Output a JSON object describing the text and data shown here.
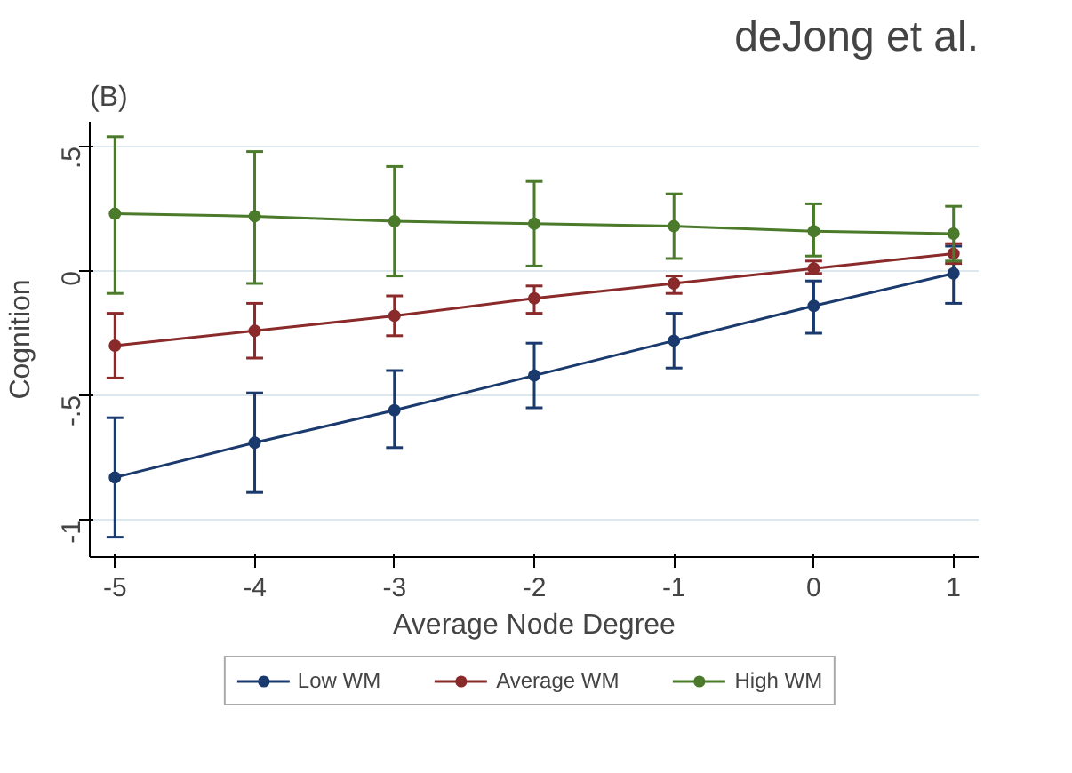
{
  "chart_data": {
    "type": "line",
    "xlabel": "Average Node Degree",
    "ylabel": "Cognition",
    "annotations": [
      "(B)",
      "deJong et al."
    ],
    "x": [
      -5,
      -4,
      -3,
      -2,
      -1,
      0,
      1
    ],
    "series": [
      {
        "name": "Low WM",
        "color": "#1a3a6e",
        "values": [
          -0.83,
          -0.69,
          -0.56,
          -0.42,
          -0.28,
          -0.14,
          -0.01
        ],
        "errors": [
          [
            -1.07,
            -0.59
          ],
          [
            -0.89,
            -0.49
          ],
          [
            -0.71,
            -0.4
          ],
          [
            -0.55,
            -0.29
          ],
          [
            -0.39,
            -0.17
          ],
          [
            -0.25,
            -0.04
          ],
          [
            -0.13,
            0.1
          ]
        ]
      },
      {
        "name": "Average WM",
        "color": "#8b2a2a",
        "values": [
          -0.3,
          -0.24,
          -0.18,
          -0.11,
          -0.05,
          0.01,
          0.07
        ],
        "errors": [
          [
            -0.43,
            -0.17
          ],
          [
            -0.35,
            -0.13
          ],
          [
            -0.26,
            -0.1
          ],
          [
            -0.17,
            -0.06
          ],
          [
            -0.09,
            -0.02
          ],
          [
            -0.01,
            0.04
          ],
          [
            0.03,
            0.11
          ]
        ]
      },
      {
        "name": "High WM",
        "color": "#4a7a2a",
        "values": [
          0.23,
          0.22,
          0.2,
          0.19,
          0.18,
          0.16,
          0.15
        ],
        "errors": [
          [
            -0.09,
            0.54
          ],
          [
            -0.05,
            0.48
          ],
          [
            -0.02,
            0.42
          ],
          [
            0.02,
            0.36
          ],
          [
            0.05,
            0.31
          ],
          [
            0.06,
            0.27
          ],
          [
            0.04,
            0.26
          ]
        ]
      }
    ],
    "xlim": [
      -5.18,
      1.18
    ],
    "xticks": [
      -5,
      -4,
      -3,
      -2,
      -1,
      0,
      1
    ],
    "ylim": [
      -1.15,
      0.6
    ],
    "yticks": [
      {
        "value": -1,
        "label": "-1"
      },
      {
        "value": -0.5,
        "label": "-.5"
      },
      {
        "value": 0,
        "label": "0"
      },
      {
        "value": 0.5,
        "label": ".5"
      }
    ],
    "grid": "y",
    "legend": "bottom",
    "marker": "circle",
    "line_style": "solid"
  }
}
